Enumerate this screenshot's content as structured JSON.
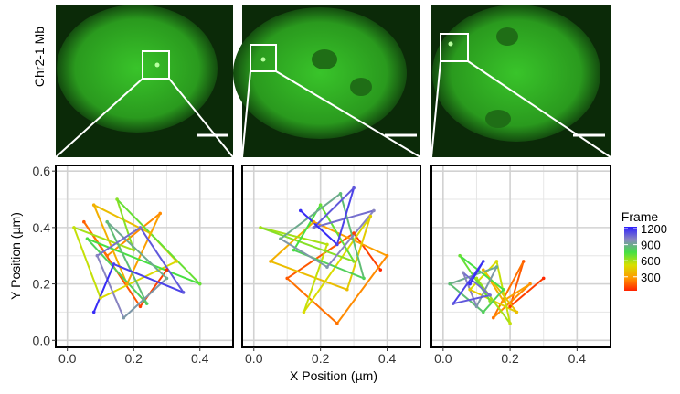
{
  "chart_data": {
    "type": "trajectory",
    "row_label": "Chr2-1 Mb",
    "xlabel": "X Position (µm)",
    "ylabel": "Y Position (µm)",
    "xlim": [
      -0.035,
      0.5
    ],
    "ylim": [
      -0.025,
      0.62
    ],
    "xticks": [
      {
        "value": 0,
        "label": "0.0"
      },
      0.2,
      0.4
    ],
    "yticks": [
      {
        "value": 0,
        "label": "0.0"
      },
      0.2,
      0.4,
      0.6
    ],
    "x_minor_grid": [
      0.1,
      0.3
    ],
    "y_minor_grid": [
      0.1,
      0.3,
      0.5
    ],
    "grid": true,
    "colorbar": {
      "title": "Frame",
      "lim": [
        40,
        1235
      ],
      "ticks": [
        300,
        600,
        900,
        1200
      ],
      "colors": [
        "#ff2200",
        "#ff9a00",
        "#d8e000",
        "#44e044",
        "#8a86c0",
        "#2a1cff"
      ]
    },
    "panels": [
      {
        "x": [
          0.3,
          0.22,
          0.05,
          0.12,
          0.28,
          0.18,
          0.08,
          0.25,
          0.33,
          0.1,
          0.02,
          0.2,
          0.15,
          0.4,
          0.06,
          0.24,
          0.12,
          0.3,
          0.17,
          0.09,
          0.22,
          0.35,
          0.14,
          0.08
        ],
        "y": [
          0.25,
          0.12,
          0.42,
          0.3,
          0.45,
          0.2,
          0.48,
          0.38,
          0.28,
          0.15,
          0.4,
          0.32,
          0.5,
          0.2,
          0.36,
          0.13,
          0.42,
          0.22,
          0.08,
          0.3,
          0.4,
          0.17,
          0.27,
          0.1
        ],
        "frame": [
          50,
          100,
          150,
          200,
          250,
          300,
          350,
          400,
          450,
          500,
          550,
          600,
          650,
          700,
          750,
          800,
          850,
          900,
          950,
          1000,
          1050,
          1100,
          1150,
          1200
        ]
      },
      {
        "x": [
          0.38,
          0.3,
          0.1,
          0.25,
          0.4,
          0.18,
          0.05,
          0.28,
          0.35,
          0.15,
          0.22,
          0.02,
          0.3,
          0.2,
          0.12,
          0.33,
          0.26,
          0.08,
          0.22,
          0.36,
          0.18,
          0.3,
          0.25,
          0.14
        ],
        "y": [
          0.25,
          0.38,
          0.22,
          0.06,
          0.3,
          0.42,
          0.28,
          0.18,
          0.44,
          0.1,
          0.34,
          0.4,
          0.28,
          0.48,
          0.32,
          0.22,
          0.52,
          0.36,
          0.26,
          0.46,
          0.4,
          0.54,
          0.34,
          0.46
        ],
        "frame": [
          50,
          100,
          150,
          200,
          250,
          300,
          350,
          400,
          450,
          500,
          550,
          600,
          650,
          700,
          750,
          800,
          850,
          900,
          950,
          1000,
          1050,
          1100,
          1150,
          1200
        ]
      },
      {
        "x": [
          0.3,
          0.2,
          0.24,
          0.15,
          0.26,
          0.18,
          0.12,
          0.22,
          0.08,
          0.16,
          0.2,
          0.1,
          0.14,
          0.05,
          0.18,
          0.12,
          0.02,
          0.16,
          0.1,
          0.06,
          0.14,
          0.03,
          0.12,
          0.08
        ],
        "y": [
          0.22,
          0.12,
          0.28,
          0.08,
          0.2,
          0.14,
          0.25,
          0.1,
          0.18,
          0.28,
          0.06,
          0.22,
          0.14,
          0.3,
          0.18,
          0.1,
          0.2,
          0.26,
          0.12,
          0.24,
          0.16,
          0.13,
          0.28,
          0.2
        ],
        "frame": [
          50,
          100,
          150,
          200,
          250,
          300,
          350,
          400,
          450,
          500,
          550,
          600,
          650,
          700,
          750,
          800,
          850,
          900,
          950,
          1000,
          1050,
          1100,
          1150,
          1200
        ]
      }
    ]
  }
}
